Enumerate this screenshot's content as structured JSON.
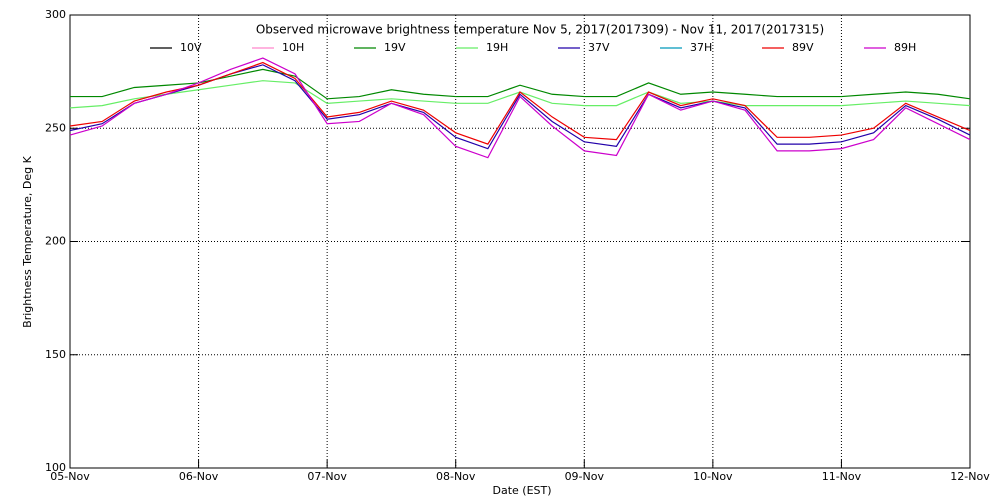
{
  "chart_data": {
    "type": "line",
    "title": "Observed microwave brightness temperature Nov  5, 2017(2017309) - Nov 11, 2017(2017315)",
    "x_label": "Date (EST)",
    "y_label": "Brightness Temperature, Deg K",
    "x": [
      0,
      0.25,
      0.5,
      0.75,
      1,
      1.25,
      1.5,
      1.75,
      2,
      2.25,
      2.5,
      2.75,
      3,
      3.25,
      3.5,
      3.75,
      4,
      4.25,
      4.5,
      4.75,
      5,
      5.25,
      5.5,
      5.75,
      6,
      6.25,
      6.5,
      6.75,
      7
    ],
    "xlim": [
      0,
      7
    ],
    "xticks": [
      {
        "value": 0,
        "label": "05-Nov"
      },
      {
        "value": 1,
        "label": "06-Nov"
      },
      {
        "value": 2,
        "label": "07-Nov"
      },
      {
        "value": 3,
        "label": "08-Nov"
      },
      {
        "value": 4,
        "label": "09-Nov"
      },
      {
        "value": 5,
        "label": "10-Nov"
      },
      {
        "value": 6,
        "label": "11-Nov"
      },
      {
        "value": 7,
        "label": "12-Nov"
      }
    ],
    "ylim": [
      100,
      300
    ],
    "yticks": [
      100,
      150,
      200,
      250,
      300
    ],
    "grid": true,
    "series": [
      {
        "name": "10V",
        "color": "#000000",
        "values": [
          null,
          null,
          null,
          null,
          null,
          null,
          null,
          null,
          null,
          null,
          null,
          null,
          null,
          null,
          null,
          null,
          null,
          null,
          null,
          null,
          null,
          null,
          null,
          null,
          null,
          null,
          null,
          null,
          null
        ]
      },
      {
        "name": "10H",
        "color": "#ff88cc",
        "values": [
          null,
          null,
          null,
          null,
          null,
          null,
          null,
          null,
          null,
          null,
          null,
          null,
          null,
          null,
          null,
          null,
          null,
          null,
          null,
          null,
          null,
          null,
          null,
          null,
          null,
          null,
          null,
          null,
          null
        ]
      },
      {
        "name": "19V",
        "color": "#008800",
        "values": [
          264,
          264,
          268,
          269,
          270,
          273,
          276,
          273,
          263,
          264,
          267,
          265,
          264,
          264,
          269,
          265,
          264,
          264,
          270,
          265,
          266,
          265,
          264,
          264,
          264,
          265,
          266,
          265,
          263
        ]
      },
      {
        "name": "19H",
        "color": "#66ee66",
        "values": [
          259,
          260,
          263,
          265,
          267,
          269,
          271,
          270,
          261,
          262,
          263,
          262,
          261,
          261,
          266,
          261,
          260,
          260,
          266,
          261,
          262,
          260,
          260,
          260,
          260,
          261,
          262,
          261,
          260
        ]
      },
      {
        "name": "37V",
        "color": "#2200aa",
        "values": [
          249,
          252,
          261,
          265,
          269,
          274,
          278,
          271,
          254,
          256,
          261,
          257,
          246,
          241,
          265,
          253,
          244,
          242,
          265,
          259,
          262,
          259,
          243,
          243,
          244,
          248,
          260,
          254,
          247
        ]
      },
      {
        "name": "37H",
        "color": "#0099bb",
        "values": [
          null,
          null,
          null,
          null,
          null,
          null,
          null,
          null,
          null,
          null,
          null,
          null,
          null,
          null,
          null,
          null,
          null,
          null,
          null,
          null,
          null,
          null,
          null,
          null,
          null,
          null,
          null,
          null,
          null
        ]
      },
      {
        "name": "89V",
        "color": "#ee0000",
        "values": [
          251,
          253,
          262,
          266,
          269,
          274,
          279,
          272,
          255,
          257,
          262,
          258,
          248,
          243,
          266,
          255,
          246,
          245,
          266,
          260,
          263,
          260,
          246,
          246,
          247,
          250,
          261,
          255,
          249
        ]
      },
      {
        "name": "89H",
        "color": "#cc00cc",
        "values": [
          247,
          251,
          261,
          265,
          270,
          276,
          281,
          274,
          252,
          253,
          261,
          256,
          242,
          237,
          264,
          251,
          240,
          238,
          265,
          258,
          262,
          258,
          240,
          240,
          241,
          245,
          259,
          252,
          245
        ]
      }
    ]
  }
}
